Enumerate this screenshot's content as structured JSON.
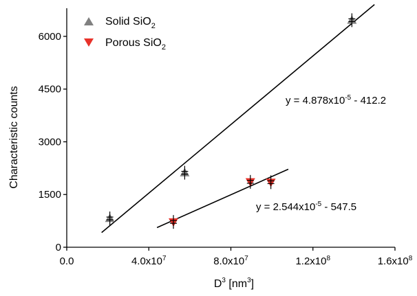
{
  "chart_data": {
    "type": "scatter",
    "xlabel": "D³ [nm³]",
    "xlabel_parts": {
      "base": "D",
      "sup": "3",
      "mid": " [nm",
      "sup2": "3",
      "end": "]"
    },
    "ylabel": "Characteristic counts",
    "xlim": [
      0,
      160000000
    ],
    "ylim": [
      0,
      6800
    ],
    "x_ticks": [
      {
        "value": 0,
        "label": "0.0",
        "base": "0.0",
        "exp": ""
      },
      {
        "value": 40000000,
        "label": "4.0x10^7",
        "base": "4.0x10",
        "exp": "7"
      },
      {
        "value": 80000000,
        "label": "8.0x10^7",
        "base": "8.0x10",
        "exp": "7"
      },
      {
        "value": 120000000,
        "label": "1.2x10^8",
        "base": "1.2x10",
        "exp": "8"
      },
      {
        "value": 160000000,
        "label": "1.6x10^8",
        "base": "1.6x10",
        "exp": "8"
      }
    ],
    "y_ticks": [
      {
        "value": 0,
        "label": "0"
      },
      {
        "value": 1500,
        "label": "1500"
      },
      {
        "value": 3000,
        "label": "3000"
      },
      {
        "value": 4500,
        "label": "4500"
      },
      {
        "value": 6000,
        "label": "6000"
      }
    ],
    "grid": false,
    "legend_position": "top-left",
    "series": [
      {
        "name": "Solid SiO2",
        "legend_label": {
          "base": "Solid SiO",
          "sub": "2"
        },
        "marker": "triangle-up",
        "color": "#808080",
        "points": [
          {
            "x": 21000000,
            "y": 820
          },
          {
            "x": 57500000,
            "y": 2120
          },
          {
            "x": 139000000,
            "y": 6460
          }
        ],
        "fit": {
          "x_range": [
            17000000,
            150000000
          ],
          "equation": {
            "pre": "y = 4.878x10",
            "exp": "-5",
            "post": " - 412.2"
          }
        }
      },
      {
        "name": "Porous SiO2",
        "legend_label": {
          "base": "Porous SiO",
          "sub": "2"
        },
        "marker": "triangle-down",
        "color": "#e8322a",
        "points": [
          {
            "x": 52000000,
            "y": 720
          },
          {
            "x": 89500000,
            "y": 1860
          },
          {
            "x": 99500000,
            "y": 1850
          }
        ],
        "fit": {
          "x_range": [
            44000000,
            108000000
          ],
          "y_range": [
            560,
            2220
          ],
          "equation": {
            "pre": "y = 2.544x10",
            "exp": "-5",
            "post": " - 547.5"
          }
        }
      }
    ]
  }
}
